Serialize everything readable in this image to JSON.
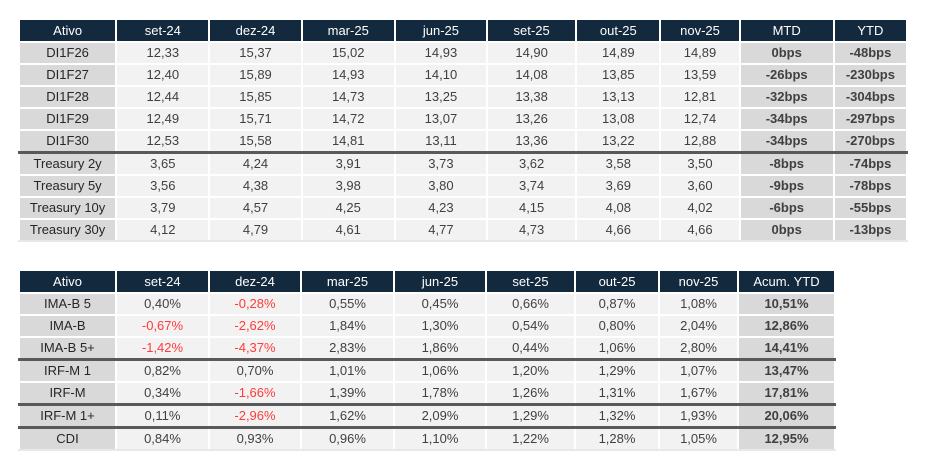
{
  "colors": {
    "header_bg": "#13293d",
    "header_text": "#ffffff",
    "label_bg": "#d9d9d9",
    "cell_bg": "#f2f2f2",
    "summary_bg": "#d9d9d9",
    "text": "#404040",
    "negative_text": "#ff3b3b",
    "group_divider": "#595959",
    "page_bg": "#ffffff"
  },
  "tables": [
    {
      "title": "rates-di-treasury",
      "headers": [
        "Ativo",
        "set-24",
        "dez-24",
        "mar-25",
        "jun-25",
        "set-25",
        "out-25",
        "nov-25",
        "MTD",
        "YTD"
      ],
      "rows": [
        {
          "label": "DI1F26",
          "values": [
            "12,33",
            "15,37",
            "15,02",
            "14,93",
            "14,90",
            "14,89",
            "14,89"
          ],
          "summary": [
            "0bps",
            "-48bps"
          ],
          "divider": false
        },
        {
          "label": "DI1F27",
          "values": [
            "12,40",
            "15,89",
            "14,93",
            "14,10",
            "14,08",
            "13,85",
            "13,59"
          ],
          "summary": [
            "-26bps",
            "-230bps"
          ],
          "divider": false
        },
        {
          "label": "DI1F28",
          "values": [
            "12,44",
            "15,85",
            "14,73",
            "13,25",
            "13,38",
            "13,13",
            "12,81"
          ],
          "summary": [
            "-32bps",
            "-304bps"
          ],
          "divider": false
        },
        {
          "label": "DI1F29",
          "values": [
            "12,49",
            "15,71",
            "14,72",
            "13,07",
            "13,26",
            "13,08",
            "12,74"
          ],
          "summary": [
            "-34bps",
            "-297bps"
          ],
          "divider": false
        },
        {
          "label": "DI1F30",
          "values": [
            "12,53",
            "15,58",
            "14,81",
            "13,11",
            "13,36",
            "13,22",
            "12,88"
          ],
          "summary": [
            "-34bps",
            "-270bps"
          ],
          "divider": false
        },
        {
          "label": "Treasury 2y",
          "values": [
            "3,65",
            "4,24",
            "3,91",
            "3,73",
            "3,62",
            "3,58",
            "3,50"
          ],
          "summary": [
            "-8bps",
            "-74bps"
          ],
          "divider": true
        },
        {
          "label": "Treasury 5y",
          "values": [
            "3,56",
            "4,38",
            "3,98",
            "3,80",
            "3,74",
            "3,69",
            "3,60"
          ],
          "summary": [
            "-9bps",
            "-78bps"
          ],
          "divider": false
        },
        {
          "label": "Treasury 10y",
          "values": [
            "3,79",
            "4,57",
            "4,25",
            "4,23",
            "4,15",
            "4,08",
            "4,02"
          ],
          "summary": [
            "-6bps",
            "-55bps"
          ],
          "divider": false
        },
        {
          "label": "Treasury 30y",
          "values": [
            "4,12",
            "4,79",
            "4,61",
            "4,77",
            "4,73",
            "4,66",
            "4,66"
          ],
          "summary": [
            "0bps",
            "-13bps"
          ],
          "divider": false
        }
      ]
    },
    {
      "title": "returns-ima-irf-cdi",
      "headers": [
        "Ativo",
        "set-24",
        "dez-24",
        "mar-25",
        "jun-25",
        "set-25",
        "out-25",
        "nov-25",
        "Acum. YTD"
      ],
      "rows": [
        {
          "label": "IMA-B 5",
          "values": [
            "0,40%",
            "-0,28%",
            "0,55%",
            "0,45%",
            "0,66%",
            "0,87%",
            "1,08%"
          ],
          "summary": [
            "10,51%"
          ],
          "divider": false
        },
        {
          "label": "IMA-B",
          "values": [
            "-0,67%",
            "-2,62%",
            "1,84%",
            "1,30%",
            "0,54%",
            "0,80%",
            "2,04%"
          ],
          "summary": [
            "12,86%"
          ],
          "divider": false
        },
        {
          "label": "IMA-B 5+",
          "values": [
            "-1,42%",
            "-4,37%",
            "2,83%",
            "1,86%",
            "0,44%",
            "1,06%",
            "2,80%"
          ],
          "summary": [
            "14,41%"
          ],
          "divider": false
        },
        {
          "label": "IRF-M 1",
          "values": [
            "0,82%",
            "0,70%",
            "1,01%",
            "1,06%",
            "1,20%",
            "1,29%",
            "1,07%"
          ],
          "summary": [
            "13,47%"
          ],
          "divider": true
        },
        {
          "label": "IRF-M",
          "values": [
            "0,34%",
            "-1,66%",
            "1,39%",
            "1,78%",
            "1,26%",
            "1,31%",
            "1,67%"
          ],
          "summary": [
            "17,81%"
          ],
          "divider": false
        },
        {
          "label": "IRF-M 1+",
          "values": [
            "0,11%",
            "-2,96%",
            "1,62%",
            "2,09%",
            "1,29%",
            "1,32%",
            "1,93%"
          ],
          "summary": [
            "20,06%"
          ],
          "divider": true
        },
        {
          "label": "CDI",
          "values": [
            "0,84%",
            "0,93%",
            "0,96%",
            "1,10%",
            "1,22%",
            "1,28%",
            "1,05%"
          ],
          "summary": [
            "12,95%"
          ],
          "divider": true
        }
      ]
    }
  ]
}
